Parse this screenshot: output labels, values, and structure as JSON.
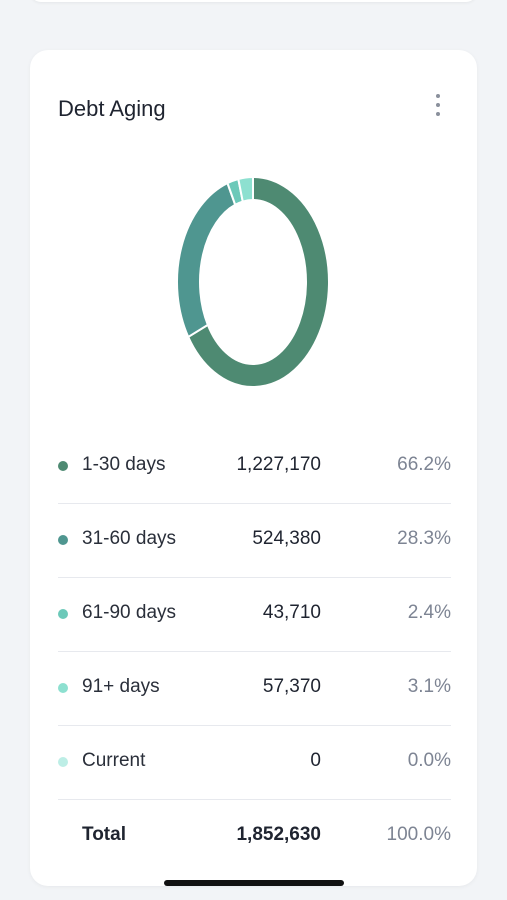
{
  "card": {
    "title": "Debt Aging",
    "menu_icon": "more-vertical-icon"
  },
  "chart_data": {
    "type": "pie",
    "donut": true,
    "title": "Debt Aging",
    "series": [
      {
        "name": "1-30 days",
        "value": 1227170,
        "percent": "66.2%",
        "display_value": "1,227,170",
        "color": "#4e8a72"
      },
      {
        "name": "31-60 days",
        "value": 524380,
        "percent": "28.3%",
        "display_value": "524,380",
        "color": "#4f9690"
      },
      {
        "name": "61-90 days",
        "value": 43710,
        "percent": "2.4%",
        "display_value": "43,710",
        "color": "#6cc9b9"
      },
      {
        "name": "91+ days",
        "value": 57370,
        "percent": "3.1%",
        "display_value": "57,370",
        "color": "#8de0d0"
      },
      {
        "name": "Current",
        "value": 0,
        "percent": "0.0%",
        "display_value": "0",
        "color": "#bdeee6"
      }
    ],
    "total": {
      "label": "Total",
      "display_value": "1,852,630",
      "percent": "100.0%"
    }
  }
}
